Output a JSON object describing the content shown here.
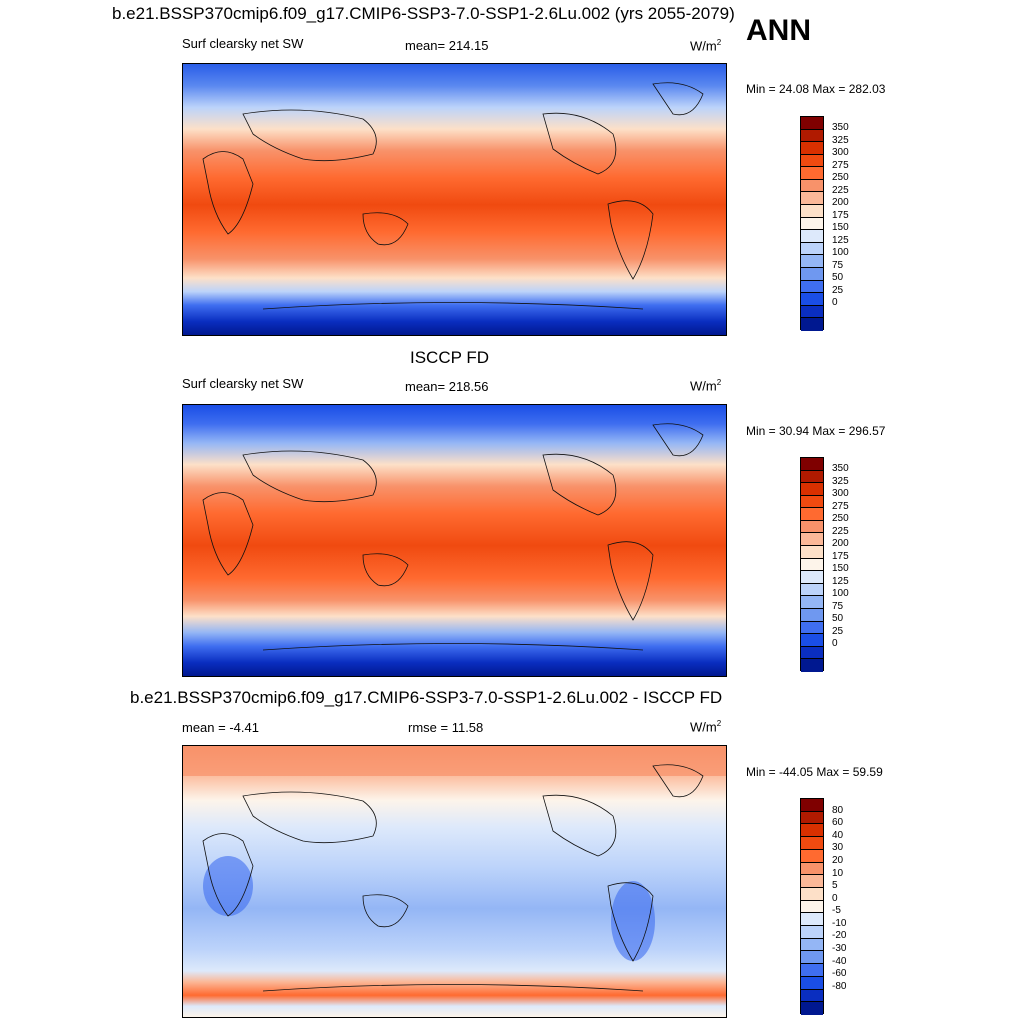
{
  "ann_label": "ANN",
  "units": "W/m",
  "units_sup": "2",
  "panels": {
    "model": {
      "title": "b.e21.BSSP370cmip6.f09_g17.CMIP6-SSP3-7.0-SSP1-2.6Lu.002 (yrs 2055-2079)",
      "left_label": "Surf clearsky net SW",
      "center_label": "mean= 214.15",
      "minmax": "Min =  24.08 Max = 282.03",
      "colorbar_levels": [
        "350",
        "325",
        "300",
        "275",
        "250",
        "225",
        "200",
        "175",
        "150",
        "125",
        "100",
        "75",
        "50",
        "25",
        "0"
      ]
    },
    "obs": {
      "title": "ISCCP FD",
      "left_label": "Surf clearsky net SW",
      "center_label": "mean= 218.56",
      "minmax": "Min =  30.94 Max = 296.57",
      "colorbar_levels": [
        "350",
        "325",
        "300",
        "275",
        "250",
        "225",
        "200",
        "175",
        "150",
        "125",
        "100",
        "75",
        "50",
        "25",
        "0"
      ]
    },
    "diff": {
      "title": "b.e21.BSSP370cmip6.f09_g17.CMIP6-SSP3-7.0-SSP1-2.6Lu.002 - ISCCP FD",
      "left_label": "mean =  -4.41",
      "center_label": "rmse =  11.58",
      "minmax": "Min = -44.05 Max =  59.59",
      "colorbar_levels": [
        "80",
        "60",
        "40",
        "30",
        "20",
        "10",
        "5",
        "0",
        "-5",
        "-10",
        "-20",
        "-30",
        "-40",
        "-60",
        "-80"
      ]
    }
  },
  "colors": {
    "palette": [
      "#7f0000",
      "#b01a00",
      "#d93000",
      "#f04a10",
      "#ff6a30",
      "#f8926a",
      "#fbb898",
      "#fde0c8",
      "#fdf4ea",
      "#dde9fb",
      "#bcd3fa",
      "#94b6f5",
      "#6f98f0",
      "#3f6ef0",
      "#1a4ee6",
      "#0a2ec0",
      "#001890",
      "#000080"
    ],
    "coast": "#111111"
  }
}
